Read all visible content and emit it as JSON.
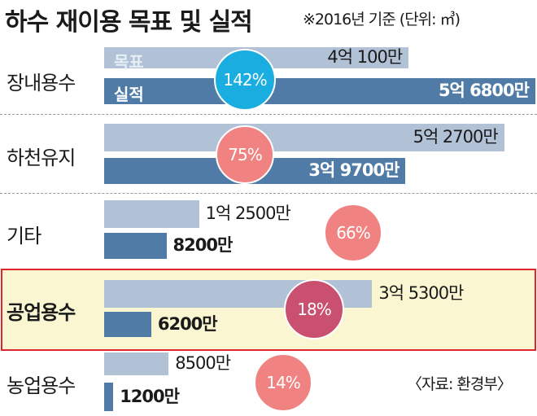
{
  "title": "하수 재이용 목표 및 실적",
  "subtitle": "※2016년 기준 (단위: ㎥)",
  "legend": {
    "target": "목표",
    "actual": "실적"
  },
  "source": "〈자료: 환경부〉",
  "colors": {
    "target": "#b2c2d6",
    "actual": "#4f7ba6",
    "highlight_border": "#e0262c",
    "highlight_bg": "#fbf6d2"
  },
  "chart_data": {
    "type": "bar",
    "orientation": "horizontal",
    "unit": "㎥ (만)",
    "categories": [
      "장내용수",
      "하천유지",
      "기타",
      "공업용수",
      "농업용수"
    ],
    "series": [
      {
        "name": "목표",
        "values": [
          40100,
          52700,
          12500,
          35300,
          8500
        ],
        "labels": [
          "4억 100만",
          "5억 2700만",
          "1억 2500만",
          "3억 5300만",
          "8500만"
        ]
      },
      {
        "name": "실적",
        "values": [
          56800,
          39700,
          8200,
          6200,
          1200
        ],
        "labels": [
          "5억 6800만",
          "3억 9700만",
          "8200만",
          "6200만",
          "1200만"
        ]
      }
    ],
    "rates": [
      "142%",
      "75%",
      "66%",
      "18%",
      "14%"
    ],
    "rate_colors": [
      "#1aaee0",
      "#f08282",
      "#f08282",
      "#c9506e",
      "#f08282"
    ],
    "highlighted": "공업용수"
  }
}
